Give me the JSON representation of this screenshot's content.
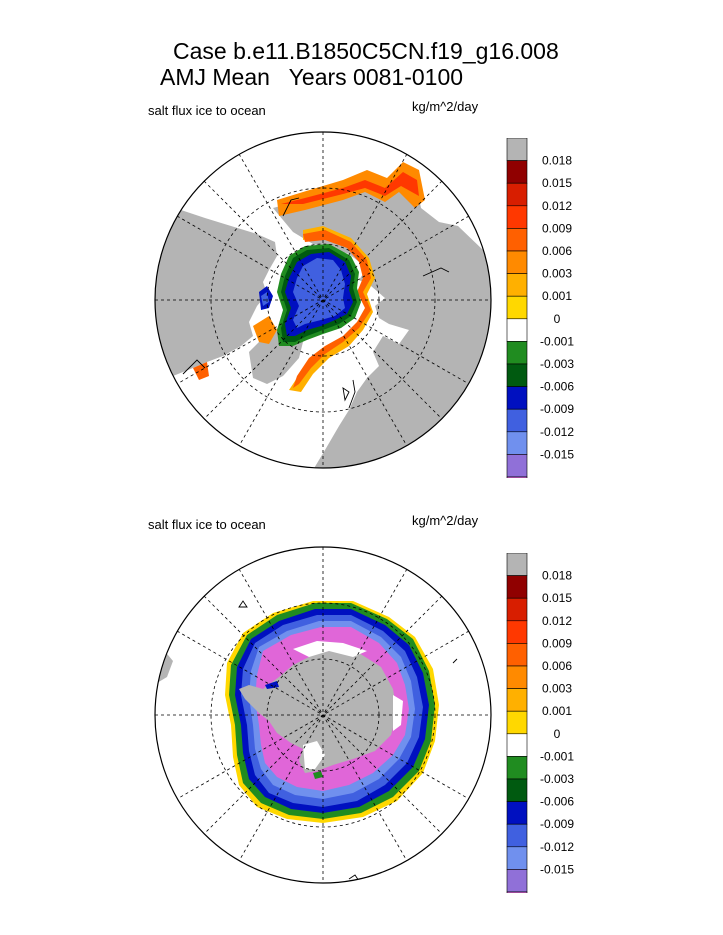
{
  "header": {
    "line1": "Case b.e11.B1850C5CN.f19_g16.008",
    "line2": "AMJ Mean   Years 0081-0100"
  },
  "colors": {
    "land": "#b4b4b4",
    "ocean": "#ffffff",
    "scale": [
      "#e066d8",
      "#9070d8",
      "#7090ee",
      "#4060e0",
      "#0010c0",
      "#005a10",
      "#208c20",
      "#ffffff",
      "#ffd800",
      "#ffb000",
      "#ff8a00",
      "#ff6000",
      "#ff3800",
      "#d81e00",
      "#900000",
      "#b4b4b4"
    ]
  },
  "chart_data": [
    {
      "type": "heatmap",
      "name": "Arctic polar stereographic",
      "region": "Northern Hemisphere",
      "title": "salt flux ice to ocean",
      "units": "kg/m^2/day",
      "colorbar_levels": [
        "0.018",
        "0.015",
        "0.012",
        "0.009",
        "0.006",
        "0.003",
        "0.001",
        "0",
        "-0.001",
        "-0.003",
        "-0.006",
        "-0.009",
        "-0.012",
        "-0.015"
      ]
    },
    {
      "type": "heatmap",
      "name": "Antarctic polar stereographic",
      "region": "Southern Hemisphere",
      "title": "salt flux ice to ocean",
      "units": "kg/m^2/day",
      "colorbar_levels": [
        "0.018",
        "0.015",
        "0.012",
        "0.009",
        "0.006",
        "0.003",
        "0.001",
        "0",
        "-0.001",
        "-0.003",
        "-0.006",
        "-0.009",
        "-0.012",
        "-0.015"
      ]
    }
  ]
}
